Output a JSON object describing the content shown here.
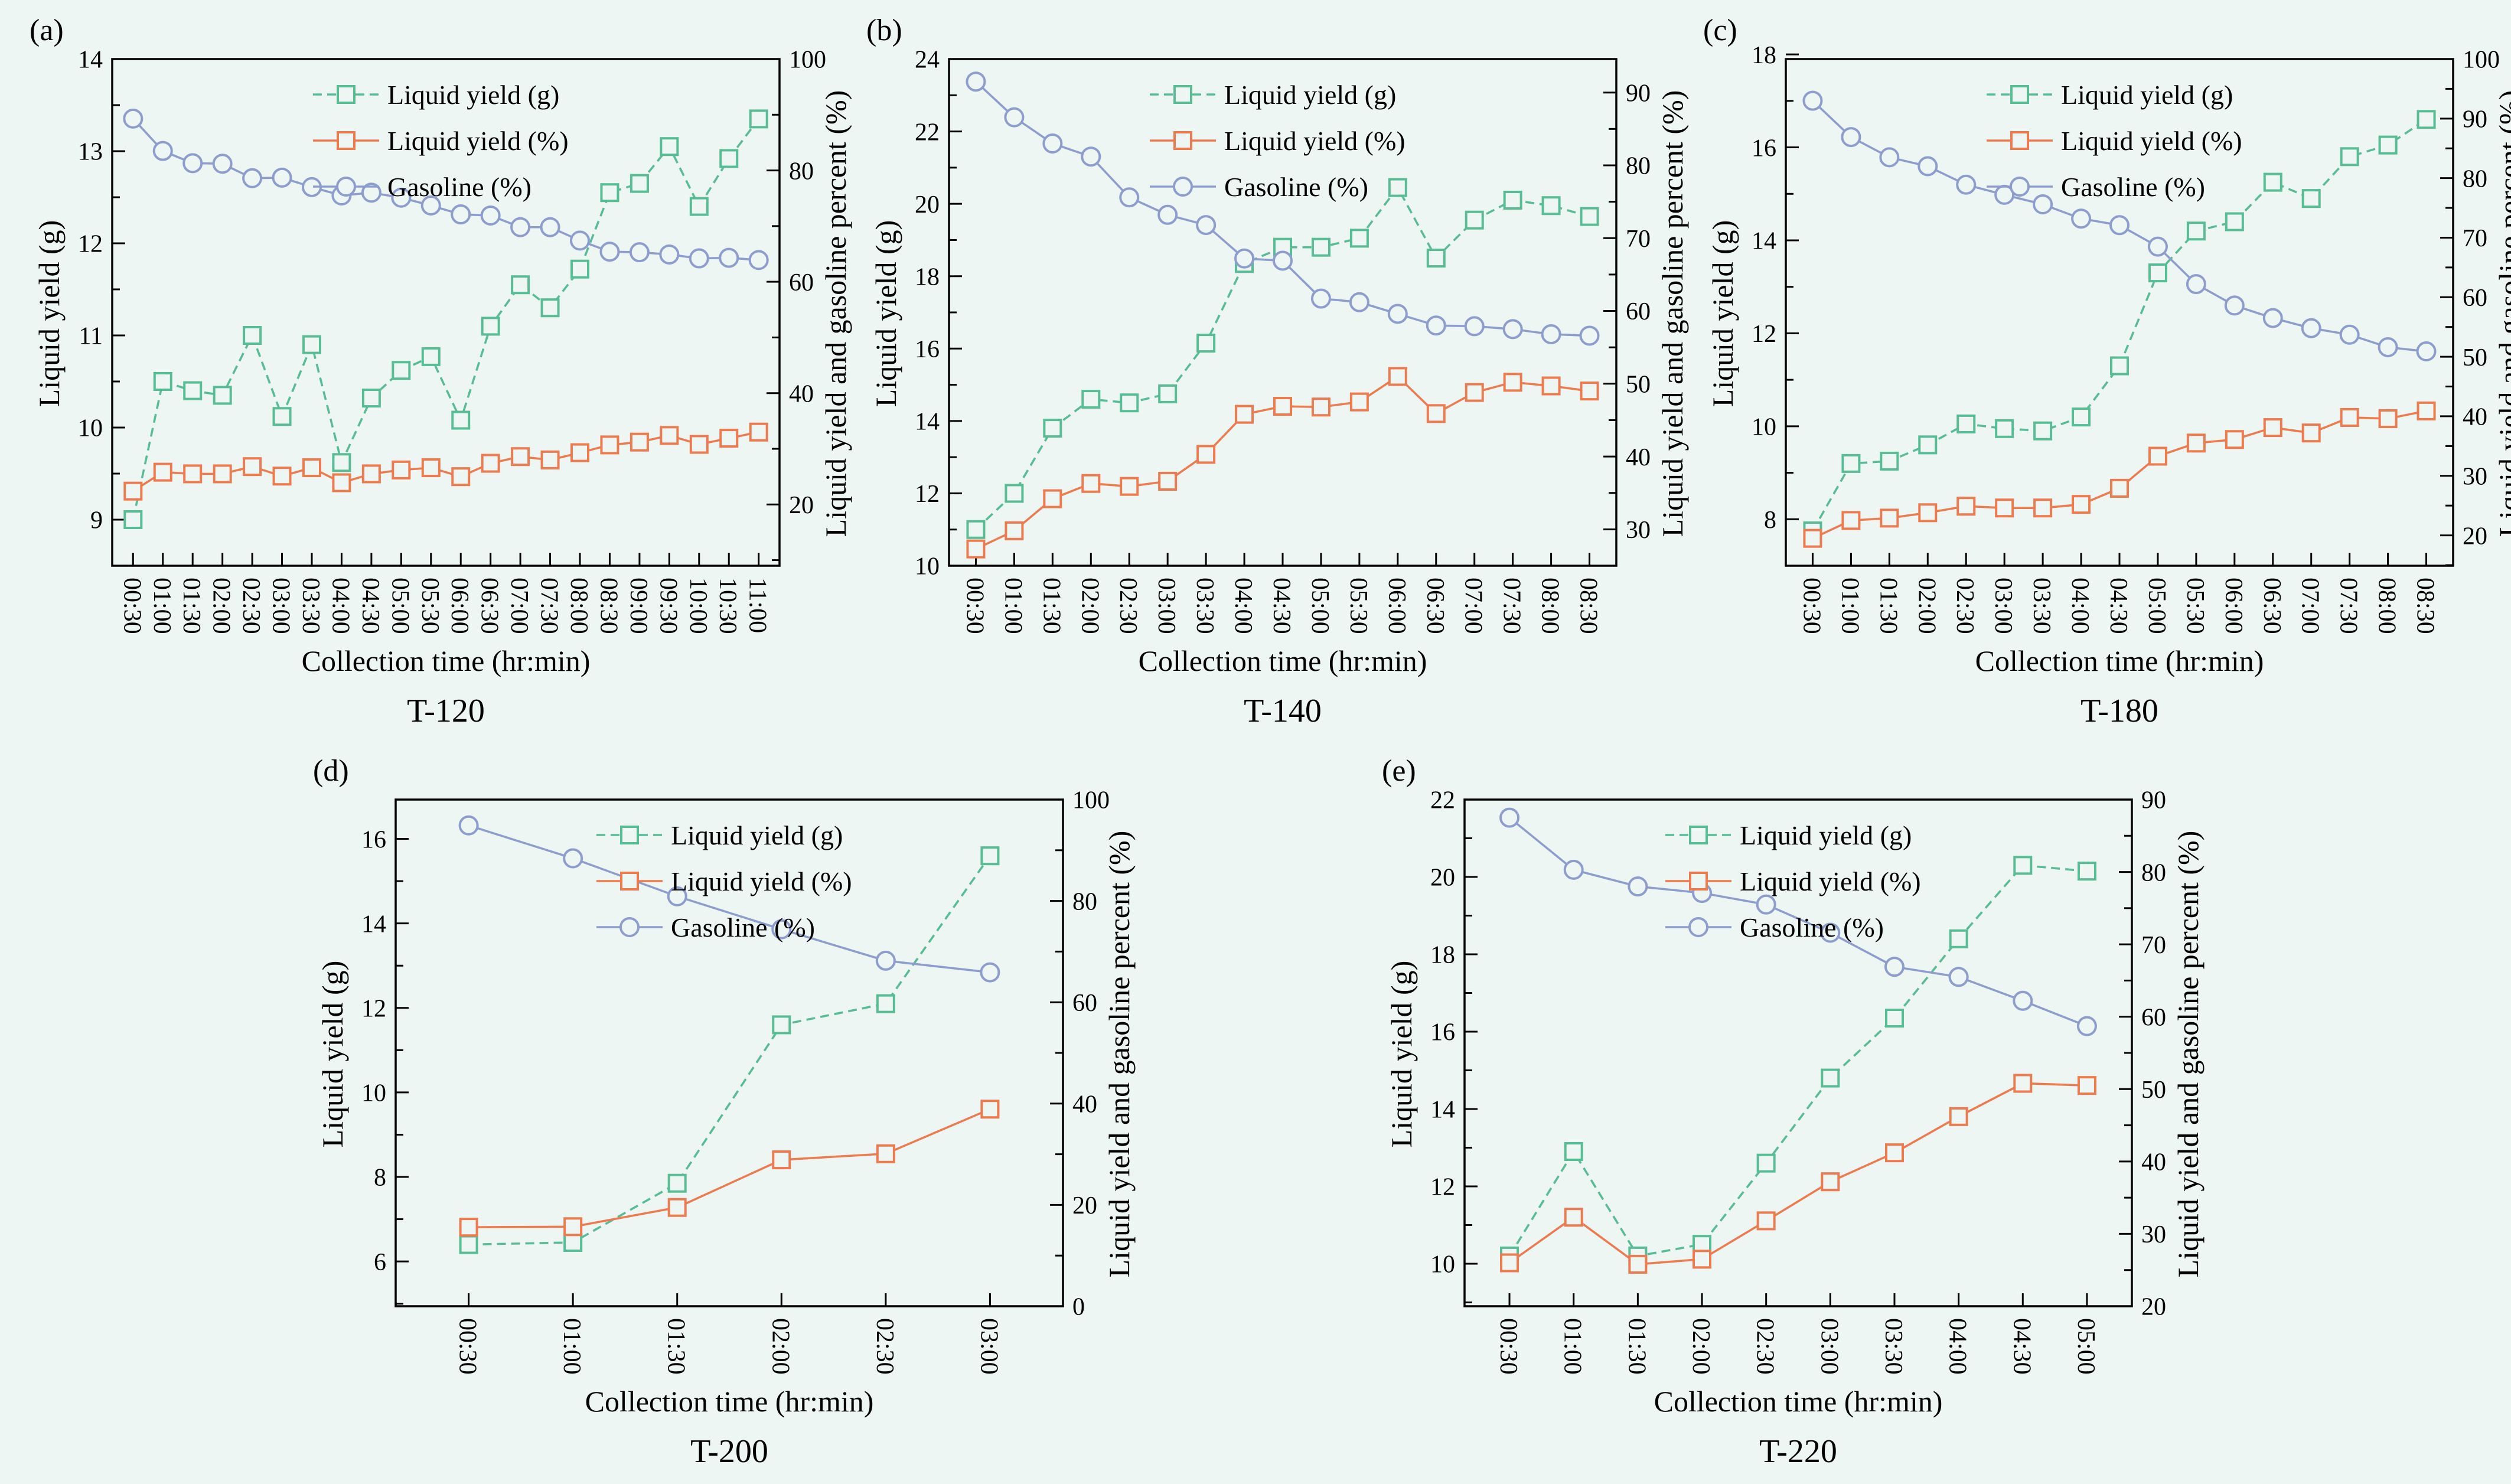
{
  "figure": {
    "background": "#EEF6F4",
    "axis_color": "#000000",
    "text_color": "#000000"
  },
  "legend": [
    {
      "key": "liquid_yield_g",
      "label": "Liquid yield (g)",
      "color": "#58BC95",
      "marker": "square",
      "line": "dashed",
      "axis": "left"
    },
    {
      "key": "liquid_yield_pct",
      "label": "Liquid yield (%)",
      "color": "#EC7B50",
      "marker": "square",
      "line": "solid",
      "axis": "right"
    },
    {
      "key": "gasoline_pct",
      "label": "Gasoline (%)",
      "color": "#8D9DCE",
      "marker": "circle",
      "line": "solid",
      "axis": "right"
    }
  ],
  "chart_data": [
    {
      "type": "line",
      "letter": "(a)",
      "caption": "T-120",
      "x_axis": {
        "label": "Collection time (hr:min)",
        "categories": [
          "00:30",
          "01:00",
          "01:30",
          "02:00",
          "02:30",
          "03:00",
          "03:30",
          "04:00",
          "04:30",
          "05:00",
          "05:30",
          "06:00",
          "06:30",
          "07:00",
          "07:30",
          "08:00",
          "08:30",
          "09:00",
          "09:30",
          "10:00",
          "10:30",
          "11:00"
        ]
      },
      "left_axis": {
        "label": "Liquid yield (g)",
        "ticks": [
          9,
          10,
          11,
          12,
          13,
          14
        ],
        "range": [
          8.5,
          14
        ],
        "minor_step": 0.5
      },
      "right_axis": {
        "label": "Liquid yield and gasoline percent (%)",
        "ticks": [
          20,
          40,
          60,
          80,
          100
        ],
        "range": [
          9,
          100
        ],
        "minor_step": 10
      },
      "series": {
        "liquid_yield_g": [
          9.0,
          10.5,
          10.4,
          10.35,
          11.0,
          10.12,
          10.9,
          9.62,
          10.32,
          10.62,
          10.77,
          10.08,
          11.1,
          11.55,
          11.3,
          11.72,
          12.55,
          12.65,
          13.05,
          12.4,
          12.92,
          13.35
        ],
        "liquid_yield_pct": [
          22.4,
          25.8,
          25.5,
          25.5,
          26.8,
          25.1,
          26.6,
          23.9,
          25.5,
          26.2,
          26.6,
          25.0,
          27.4,
          28.6,
          28.0,
          29.3,
          30.7,
          31.2,
          32.4,
          30.8,
          31.9,
          33.0
        ],
        "gasoline_pct": [
          89.3,
          83.5,
          81.3,
          81.2,
          78.6,
          78.7,
          77.0,
          75.5,
          76.0,
          75.1,
          73.7,
          72.1,
          71.9,
          69.8,
          69.8,
          67.4,
          65.4,
          65.3,
          64.9,
          64.2,
          64.3,
          63.9
        ]
      }
    },
    {
      "type": "line",
      "letter": "(b)",
      "caption": "T-140",
      "x_axis": {
        "label": "Collection time (hr:min)",
        "categories": [
          "00:30",
          "01:00",
          "01:30",
          "02:00",
          "02:30",
          "03:00",
          "03:30",
          "04:00",
          "04:30",
          "05:00",
          "05:30",
          "06:00",
          "06:30",
          "07:00",
          "07:30",
          "08:00",
          "08:30"
        ]
      },
      "left_axis": {
        "label": "Liquid yield (g)",
        "ticks": [
          10,
          12,
          14,
          16,
          18,
          20,
          22,
          24
        ],
        "range": [
          10,
          24
        ],
        "minor_step": 1
      },
      "right_axis": {
        "label": "Liquid yield and gasoline percent (%)",
        "ticks": [
          30,
          40,
          50,
          60,
          70,
          80,
          90
        ],
        "range": [
          25,
          94.6
        ],
        "minor_step": 5
      },
      "series": {
        "liquid_yield_g": [
          11.0,
          12.0,
          13.8,
          14.6,
          14.5,
          14.75,
          16.15,
          18.35,
          18.8,
          18.8,
          19.05,
          20.45,
          18.5,
          19.55,
          20.1,
          19.95,
          19.65
        ],
        "liquid_yield_pct": [
          27.3,
          29.8,
          34.2,
          36.3,
          35.9,
          36.6,
          40.3,
          45.8,
          46.9,
          46.8,
          47.5,
          51.0,
          45.9,
          48.8,
          50.2,
          49.7,
          49.0
        ],
        "gasoline_pct": [
          91.5,
          86.6,
          83.0,
          81.2,
          75.6,
          73.2,
          71.8,
          67.2,
          66.9,
          61.7,
          61.2,
          59.6,
          58.0,
          57.9,
          57.5,
          56.8,
          56.6
        ]
      }
    },
    {
      "type": "line",
      "letter": "(c)",
      "caption": "T-180",
      "x_axis": {
        "label": "Collection time (hr:min)",
        "categories": [
          "00:30",
          "01:00",
          "01:30",
          "02:00",
          "02:30",
          "03:00",
          "03:30",
          "04:00",
          "04:30",
          "05:00",
          "05:30",
          "06:00",
          "06:30",
          "07:00",
          "07:30",
          "08:00",
          "08:30"
        ]
      },
      "left_axis": {
        "label": "Liquid yield (g)",
        "ticks": [
          8,
          10,
          12,
          14,
          16,
          18
        ],
        "range": [
          7.0,
          17.9
        ],
        "minor_step": 1
      },
      "right_axis": {
        "label": "Liquid yield and gasoline percent (%)",
        "ticks": [
          20,
          30,
          40,
          50,
          60,
          70,
          80,
          90,
          100
        ],
        "range": [
          14.9,
          100
        ],
        "minor_step": 5
      },
      "series": {
        "liquid_yield_g": [
          7.75,
          9.2,
          9.25,
          9.6,
          10.05,
          9.95,
          9.9,
          10.2,
          11.3,
          13.3,
          14.2,
          14.4,
          15.25,
          14.9,
          15.8,
          16.05,
          16.6
        ],
        "liquid_yield_pct": [
          19.5,
          22.5,
          22.9,
          23.8,
          24.9,
          24.6,
          24.6,
          25.2,
          27.9,
          33.3,
          35.5,
          36.1,
          38.1,
          37.2,
          39.8,
          39.6,
          40.9
        ],
        "gasoline_pct": [
          93.0,
          86.9,
          83.5,
          82.0,
          78.9,
          77.2,
          75.6,
          73.2,
          72.1,
          68.5,
          62.2,
          58.6,
          56.5,
          54.8,
          53.7,
          51.6,
          50.9
        ]
      }
    },
    {
      "type": "line",
      "letter": "(d)",
      "caption": "T-200",
      "x_axis": {
        "label": "Collection time (hr:min)",
        "categories": [
          "00:30",
          "01:00",
          "01:30",
          "02:00",
          "02:30",
          "03:00"
        ]
      },
      "left_axis": {
        "label": "Liquid yield (g)",
        "ticks": [
          6,
          8,
          10,
          12,
          14,
          16
        ],
        "range": [
          4.94,
          16.93
        ],
        "minor_step": 1
      },
      "right_axis": {
        "label": "Liquid yield and gasoline percent (%)",
        "ticks": [
          0,
          20,
          40,
          60,
          80,
          100
        ],
        "range": [
          0,
          100
        ],
        "minor_step": 10
      },
      "series": {
        "liquid_yield_g": [
          6.4,
          6.45,
          7.85,
          11.6,
          12.1,
          15.6
        ],
        "liquid_yield_pct": [
          15.6,
          15.7,
          19.5,
          28.9,
          30.1,
          38.9
        ],
        "gasoline_pct": [
          94.9,
          88.4,
          80.9,
          74.4,
          68.2,
          65.9
        ]
      }
    },
    {
      "type": "line",
      "letter": "(e)",
      "caption": "T-220",
      "x_axis": {
        "label": "Collection time (hr:min)",
        "categories": [
          "00:30",
          "01:00",
          "01:30",
          "02:00",
          "02:30",
          "03:00",
          "03:30",
          "04:00",
          "04:30",
          "05:00"
        ]
      },
      "left_axis": {
        "label": "Liquid yield (g)",
        "ticks": [
          10,
          12,
          14,
          16,
          18,
          20,
          22
        ],
        "range": [
          8.9,
          22
        ],
        "minor_step": 1
      },
      "right_axis": {
        "label": "Liquid yield and gasoline percent (%)",
        "ticks": [
          20,
          30,
          40,
          50,
          60,
          70,
          80,
          90
        ],
        "range": [
          20,
          90
        ],
        "minor_step": 5
      },
      "series": {
        "liquid_yield_g": [
          10.2,
          12.9,
          10.2,
          10.5,
          12.6,
          14.8,
          16.35,
          18.4,
          20.3,
          20.15
        ],
        "liquid_yield_pct": [
          26.0,
          32.3,
          25.8,
          26.5,
          31.8,
          37.2,
          41.2,
          46.2,
          50.8,
          50.5
        ],
        "gasoline_pct": [
          87.5,
          80.3,
          78.0,
          77.1,
          75.5,
          71.6,
          66.9,
          65.5,
          62.2,
          58.7
        ]
      }
    }
  ]
}
